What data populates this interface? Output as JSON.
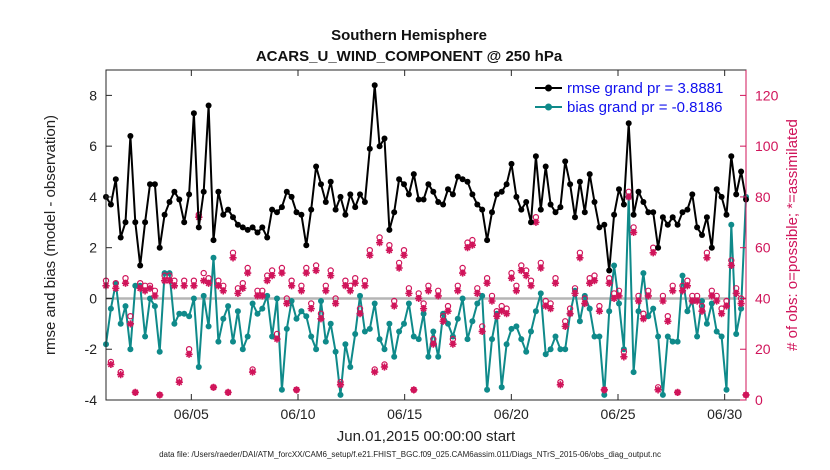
{
  "chart_data": {
    "type": "line",
    "title": "Southern Hemisphere",
    "subtitle": "ACARS_U_WIND_COMPONENT @ 250 hPa",
    "xlabel": "Jun.01,2015 00:00:00 start",
    "ylabel": "rmse and bias (model - observation)",
    "y2label": "# of obs: o=possible; *=assimilated",
    "footnote": "data file: /Users/raeder/DAI/ATM_forcXX/CAM6_setup/f.e21.FHIST_BGC.f09_025.CAM6assim.011/Diags_NTrS_2015-06/obs_diag_output.nc",
    "xlim": [
      1.0,
      31.0
    ],
    "ylim": [
      -4,
      9
    ],
    "y2lim": [
      0,
      130
    ],
    "xticks": [
      5,
      10,
      15,
      20,
      25,
      30
    ],
    "xtick_labels": [
      "06/05",
      "06/10",
      "06/15",
      "06/20",
      "06/25",
      "06/30"
    ],
    "yticks": [
      -4,
      -2,
      0,
      2,
      4,
      6,
      8
    ],
    "ytick_labels": [
      "-4",
      "-2",
      "0",
      "2",
      "4",
      "6",
      "8"
    ],
    "y2ticks": [
      0,
      20,
      40,
      60,
      80,
      100,
      120
    ],
    "y2tick_labels": [
      "0",
      "20",
      "40",
      "60",
      "80",
      "100",
      "120"
    ],
    "legend_position": "top-right",
    "series": [
      {
        "name": "rmse grand pr = 3.8881",
        "color": "#000000",
        "values": [
          4.0,
          3.7,
          4.7,
          2.4,
          3.0,
          6.4,
          3.0,
          1.3,
          3.0,
          4.5,
          4.5,
          2.0,
          3.3,
          3.8,
          4.2,
          3.9,
          3.0,
          4.1,
          7.3,
          2.8,
          4.2,
          7.6,
          2.3,
          4.2,
          3.3,
          3.5,
          3.2,
          2.9,
          2.8,
          2.7,
          2.8,
          2.6,
          2.8,
          2.4,
          3.5,
          3.4,
          3.6,
          4.2,
          4.0,
          3.4,
          3.3,
          2.1,
          3.5,
          5.2,
          4.5,
          3.8,
          4.6,
          3.5,
          4.0,
          3.3,
          4.1,
          3.6,
          4.1,
          3.8,
          5.9,
          8.4,
          6.0,
          6.3,
          2.7,
          3.4,
          4.7,
          4.5,
          4.1,
          4.9,
          3.9,
          3.9,
          4.5,
          4.2,
          3.8,
          3.7,
          4.3,
          4.1,
          4.8,
          4.7,
          4.6,
          4.1,
          3.7,
          3.5,
          2.3,
          3.4,
          4.1,
          4.2,
          4.5,
          5.3,
          4.0,
          3.5,
          3.8,
          3.0,
          5.6,
          3.5,
          5.2,
          3.7,
          3.4,
          3.6,
          5.4,
          4.5,
          3.2,
          4.6,
          3.4,
          4.9,
          3.8,
          2.8,
          2.9,
          1.1,
          3.3,
          4.3,
          3.7,
          6.9,
          3.3,
          4.2,
          3.8,
          3.4,
          3.4,
          2.0,
          3.2,
          2.9,
          3.2,
          2.9,
          3.4,
          3.5,
          4.1,
          2.8,
          2.5,
          3.2,
          2.0,
          4.3,
          4.0,
          3.3,
          5.6,
          4.1,
          5.0,
          3.9
        ]
      },
      {
        "name": "bias grand pr = -0.8186",
        "color": "#0f8a8a",
        "values": [
          -1.8,
          -0.4,
          0.6,
          -1.0,
          -0.3,
          -2.0,
          0.5,
          0.5,
          -1.5,
          0.0,
          -0.3,
          -2.1,
          1.0,
          1.0,
          -1.0,
          -0.6,
          -0.6,
          -0.7,
          0.0,
          -2.7,
          0.1,
          -1.1,
          1.6,
          -1.7,
          -0.8,
          -0.3,
          -1.7,
          -0.5,
          -2.0,
          -1.5,
          -0.2,
          -0.6,
          -0.4,
          0.1,
          -1.5,
          0.0,
          -3.6,
          -1.2,
          -0.1,
          -0.8,
          -0.5,
          -0.7,
          -1.5,
          -2.0,
          -0.1,
          -1.7,
          -1.0,
          -2.1,
          -3.8,
          -1.8,
          -2.7,
          -1.4,
          0.1,
          -1.3,
          -1.2,
          -0.2,
          -1.6,
          -2.0,
          -1.0,
          -2.3,
          -1.3,
          -1.0,
          -0.2,
          -1.5,
          -1.6,
          -0.6,
          -2.3,
          -1.3,
          -2.3,
          -0.6,
          -1.0,
          -1.5,
          -0.8,
          0.0,
          -1.6,
          -0.9,
          -0.2,
          0.1,
          -3.6,
          -1.6,
          -0.6,
          -3.5,
          -1.8,
          -1.2,
          -1.1,
          -1.6,
          -2.1,
          -1.3,
          -0.5,
          0.2,
          -2.2,
          -2.0,
          -1.5,
          -2.0,
          -2.0,
          -0.6,
          0.3,
          -0.9,
          0.1,
          -0.4,
          -1.5,
          -1.5,
          -3.8,
          -0.5,
          1.3,
          -0.2,
          -2.0,
          4.0,
          -2.9,
          -0.5,
          1.0,
          -0.7,
          -0.4,
          -1.5,
          -3.8,
          -1.5,
          -1.7,
          -1.7,
          0.9,
          -0.5,
          -0.1,
          -1.5,
          -0.1,
          -1.0,
          -0.2,
          -1.3,
          -1.5,
          -3.6,
          2.9,
          -1.4,
          -0.4,
          4.0
        ]
      },
      {
        "name": "# of obs possible",
        "marker": "o",
        "axis": "right",
        "color": "#d0145a",
        "values": [
          47,
          15,
          46,
          11,
          48,
          33,
          3,
          46,
          45,
          45,
          43,
          2,
          49,
          49,
          47,
          8,
          47,
          20,
          47,
          73,
          50,
          48,
          5,
          47,
          45,
          3,
          58,
          44,
          46,
          52,
          12,
          43,
          43,
          49,
          51,
          26,
          52,
          40,
          47,
          4,
          45,
          52,
          38,
          53,
          34,
          45,
          51,
          40,
          7,
          47,
          45,
          48,
          36,
          47,
          59,
          12,
          64,
          14,
          61,
          39,
          54,
          59,
          44,
          4,
          42,
          38,
          45,
          24,
          43,
          33,
          37,
          24,
          45,
          52,
          62,
          63,
          44,
          29,
          48,
          41,
          35,
          37,
          36,
          50,
          45,
          53,
          51,
          47,
          72,
          54,
          39,
          38,
          48,
          7,
          31,
          36,
          44,
          58,
          40,
          48,
          49,
          37,
          4,
          48,
          42,
          43,
          19,
          82,
          68,
          41,
          34,
          43,
          60,
          5,
          41,
          33,
          45,
          3,
          45,
          47,
          41,
          41,
          37,
          58,
          43,
          41,
          36,
          39,
          55,
          44,
          40,
          2
        ]
      },
      {
        "name": "# of obs assimilated",
        "marker": "*",
        "axis": "right",
        "color": "#d0145a",
        "values": [
          45,
          14,
          44,
          10,
          46,
          30,
          3,
          44,
          43,
          44,
          41,
          2,
          47,
          47,
          45,
          7,
          45,
          18,
          45,
          72,
          47,
          46,
          5,
          45,
          43,
          3,
          56,
          42,
          44,
          50,
          11,
          41,
          41,
          47,
          49,
          24,
          50,
          38,
          45,
          4,
          43,
          50,
          36,
          51,
          32,
          43,
          49,
          38,
          6,
          45,
          43,
          46,
          34,
          45,
          57,
          11,
          62,
          13,
          59,
          37,
          52,
          57,
          42,
          4,
          40,
          36,
          43,
          22,
          41,
          31,
          35,
          22,
          43,
          50,
          60,
          61,
          42,
          27,
          46,
          39,
          33,
          35,
          34,
          48,
          43,
          51,
          49,
          45,
          70,
          52,
          37,
          36,
          46,
          6,
          29,
          34,
          42,
          56,
          38,
          46,
          47,
          35,
          4,
          46,
          40,
          41,
          17,
          80,
          66,
          39,
          32,
          41,
          58,
          4,
          39,
          31,
          43,
          3,
          43,
          45,
          39,
          39,
          35,
          56,
          41,
          39,
          34,
          37,
          53,
          42,
          38,
          2
        ]
      }
    ]
  }
}
